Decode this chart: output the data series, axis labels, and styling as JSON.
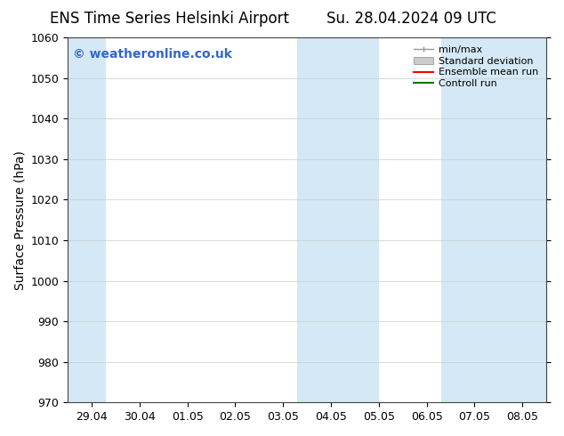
{
  "title_left": "ENS Time Series Helsinki Airport",
  "title_right": "Su. 28.04.2024 09 UTC",
  "ylabel": "Surface Pressure (hPa)",
  "ylim": [
    970,
    1060
  ],
  "yticks": [
    970,
    980,
    990,
    1000,
    1010,
    1020,
    1030,
    1040,
    1050,
    1060
  ],
  "xlabel_tick_labels": [
    "29.04",
    "30.04",
    "01.05",
    "02.05",
    "03.05",
    "04.05",
    "05.05",
    "06.05",
    "07.05",
    "08.05"
  ],
  "shaded_color": "#d4e8f5",
  "bg_color": "#ffffff",
  "plot_bg_color": "#ffffff",
  "watermark_text": "© weatheronline.co.uk",
  "watermark_color": "#3366cc",
  "legend_labels": [
    "min/max",
    "Standard deviation",
    "Ensemble mean run",
    "Controll run"
  ],
  "legend_colors": [
    "#999999",
    "#cccccc",
    "#ff0000",
    "#007700"
  ],
  "title_fontsize": 12,
  "axis_label_fontsize": 10,
  "tick_fontsize": 9,
  "watermark_fontsize": 10,
  "legend_fontsize": 8
}
